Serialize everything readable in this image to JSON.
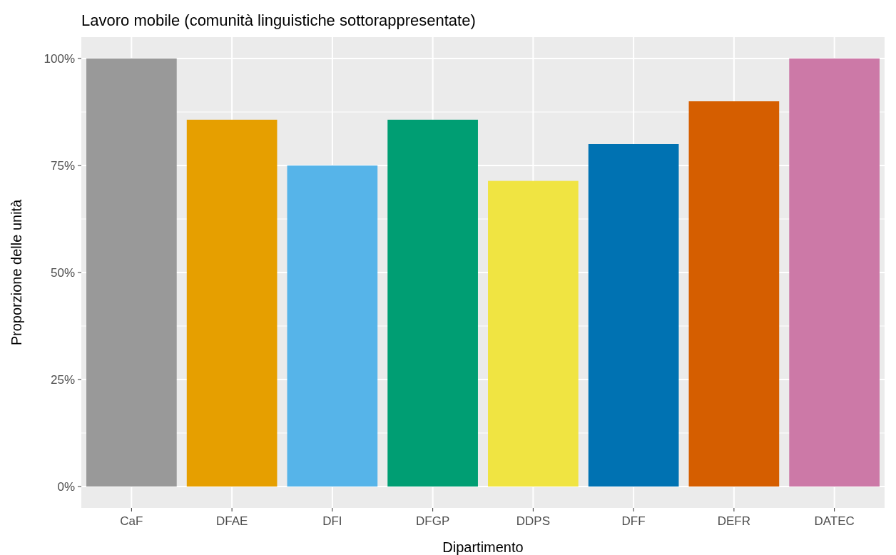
{
  "chart_data": {
    "type": "bar",
    "title": "Lavoro mobile (comunità linguistiche sottorappresentate)",
    "xlabel": "Dipartimento",
    "ylabel": "Proporzione delle unità",
    "categories": [
      "CaF",
      "DFAE",
      "DFI",
      "DFGP",
      "DDPS",
      "DFF",
      "DEFR",
      "DATEC"
    ],
    "values": [
      100,
      85.7,
      75,
      85.7,
      71.4,
      80,
      90,
      100
    ],
    "colors": [
      "#999999",
      "#e69f00",
      "#56b4e9",
      "#009e73",
      "#f0e442",
      "#0072b2",
      "#d55e00",
      "#cc79a7"
    ],
    "ylim": [
      -5,
      105
    ],
    "yticks": [
      {
        "value": 0,
        "label": "0%"
      },
      {
        "value": 25,
        "label": "25%"
      },
      {
        "value": 50,
        "label": "50%"
      },
      {
        "value": 75,
        "label": "75%"
      },
      {
        "value": 100,
        "label": "100%"
      }
    ],
    "grid": true
  }
}
